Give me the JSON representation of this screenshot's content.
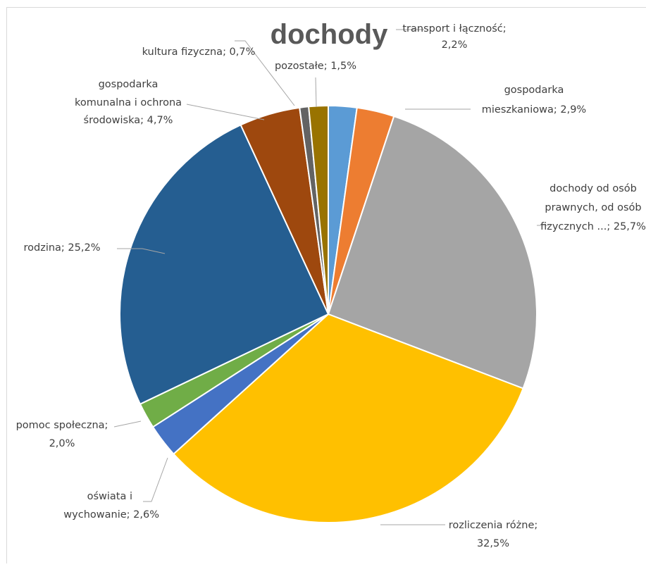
{
  "chart_data": {
    "type": "pie",
    "title": "dochody",
    "slices": [
      {
        "label": "transport i łączność",
        "value": 2.2,
        "value_label": "2,2%",
        "color": "#5b9bd5"
      },
      {
        "label": "gospodarka mieszkaniowa",
        "value": 2.9,
        "value_label": "2,9%",
        "color": "#ed7d31"
      },
      {
        "label": "dochody od osób prawnych, od osób fizycznych ...",
        "value": 25.7,
        "value_label": "25,7%",
        "color": "#a5a5a5"
      },
      {
        "label": "rozliczenia różne",
        "value": 32.5,
        "value_label": "32,5%",
        "color": "#ffc000"
      },
      {
        "label": "oświata i wychowanie",
        "value": 2.6,
        "value_label": "2,6%",
        "color": "#4472c4"
      },
      {
        "label": "pomoc społeczna",
        "value": 2.0,
        "value_label": "2,0%",
        "color": "#70ad47"
      },
      {
        "label": "rodzina",
        "value": 25.2,
        "value_label": "25,2%",
        "color": "#255e91"
      },
      {
        "label": "gospodarka komunalna i ochrona środowiska",
        "value": 4.7,
        "value_label": "4,7%",
        "color": "#9e480e"
      },
      {
        "label": "kultura fizyczna",
        "value": 0.7,
        "value_label": "0,7%",
        "color": "#636363"
      },
      {
        "label": "pozostałe",
        "value": 1.5,
        "value_label": "1,5%",
        "color": "#997300"
      }
    ],
    "legend": "none",
    "data_labels": "outside with leader lines"
  }
}
